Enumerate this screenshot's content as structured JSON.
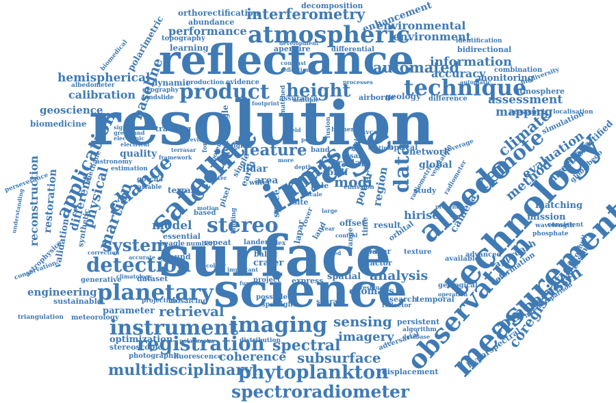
{
  "colors": {
    "word": "#3f7ab4",
    "background": "#ffffff"
  },
  "words": [
    {
      "text": "resolution"
    },
    {
      "text": "surface"
    },
    {
      "text": "science"
    },
    {
      "text": "reflectance"
    },
    {
      "text": "image"
    },
    {
      "text": "technology"
    },
    {
      "text": "measurement"
    },
    {
      "text": "observation"
    },
    {
      "text": "albedo"
    },
    {
      "text": "satellite"
    },
    {
      "text": "atmospheric"
    },
    {
      "text": "planetary"
    },
    {
      "text": "instrument"
    },
    {
      "text": "imaging"
    },
    {
      "text": "spectroradiometer"
    },
    {
      "text": "phytoplankton"
    },
    {
      "text": "registration"
    },
    {
      "text": "product"
    },
    {
      "text": "technique"
    },
    {
      "text": "stereo"
    },
    {
      "text": "detection"
    },
    {
      "text": "system"
    },
    {
      "text": "cloud"
    },
    {
      "text": "change"
    },
    {
      "text": "application"
    },
    {
      "text": "mars"
    },
    {
      "text": "data"
    },
    {
      "text": "remote"
    },
    {
      "text": "comparison"
    },
    {
      "text": "coregistration"
    },
    {
      "text": "interferometry"
    },
    {
      "text": "height"
    },
    {
      "text": "feature"
    },
    {
      "text": "multidisciplinary"
    },
    {
      "text": "subsurface"
    },
    {
      "text": "coherence"
    },
    {
      "text": "spectral"
    },
    {
      "text": "imagery"
    },
    {
      "text": "sensing"
    },
    {
      "text": "retrieval"
    },
    {
      "text": "analysis"
    },
    {
      "text": "climate"
    },
    {
      "text": "method"
    },
    {
      "text": "evaluation"
    },
    {
      "text": "automated"
    },
    {
      "text": "information"
    },
    {
      "text": "accuracy"
    },
    {
      "text": "hemispherical"
    },
    {
      "text": "calibration"
    },
    {
      "text": "baseline"
    },
    {
      "text": "performance"
    },
    {
      "text": "environmental"
    },
    {
      "text": "environment"
    },
    {
      "text": "orthorectification"
    },
    {
      "text": "decomposition"
    },
    {
      "text": "enhancement"
    },
    {
      "text": "assessment"
    },
    {
      "text": "mapping"
    },
    {
      "text": "monitoring"
    },
    {
      "text": "martian"
    },
    {
      "text": "physical"
    },
    {
      "text": "reconstruction"
    },
    {
      "text": "restoration"
    },
    {
      "text": "geoscience"
    },
    {
      "text": "biomedicine"
    },
    {
      "text": "model"
    },
    {
      "text": "hirise"
    },
    {
      "text": "global"
    },
    {
      "text": "network"
    },
    {
      "text": "camera"
    },
    {
      "text": "modi"
    },
    {
      "text": "lidar"
    },
    {
      "text": "radar"
    },
    {
      "text": "mission"
    },
    {
      "text": "matching"
    },
    {
      "text": "engineering"
    },
    {
      "text": "parameter"
    },
    {
      "text": "dataset"
    },
    {
      "text": "exomars"
    },
    {
      "text": "result"
    },
    {
      "text": "quality"
    },
    {
      "text": "different"
    },
    {
      "text": "validation"
    },
    {
      "text": "polarimetric"
    },
    {
      "text": "abundance"
    },
    {
      "text": "topography"
    },
    {
      "text": "learning"
    },
    {
      "text": "aperture"
    },
    {
      "text": "differential"
    },
    {
      "text": "bidirectional"
    },
    {
      "text": "identification"
    },
    {
      "text": "atmosphere"
    },
    {
      "text": "region"
    },
    {
      "text": "power"
    },
    {
      "text": "deformation"
    },
    {
      "text": "hyperspectral"
    },
    {
      "text": "intercomparison"
    },
    {
      "text": "chlorophyll"
    },
    {
      "text": "directional"
    },
    {
      "text": "orthorectified"
    },
    {
      "text": "globalbedo"
    },
    {
      "text": "simulation"
    },
    {
      "text": "localisation"
    },
    {
      "text": "biodiversity"
    },
    {
      "text": "combination"
    },
    {
      "text": "optimization"
    },
    {
      "text": "stereoscopic"
    },
    {
      "text": "photographic"
    },
    {
      "text": "fluorescence"
    },
    {
      "text": "meteorology"
    },
    {
      "text": "sustainable"
    },
    {
      "text": "displacement"
    },
    {
      "text": "adversarial"
    },
    {
      "text": "temporal"
    },
    {
      "text": "generative"
    },
    {
      "text": "spatial"
    },
    {
      "text": "terrain"
    },
    {
      "text": "area"
    },
    {
      "text": "ground"
    },
    {
      "text": "essential"
    },
    {
      "text": "beagle"
    },
    {
      "text": "repeat"
    },
    {
      "text": "lander"
    },
    {
      "text": "crater"
    },
    {
      "text": "baltic"
    },
    {
      "text": "paper"
    },
    {
      "text": "express"
    },
    {
      "text": "sharad"
    },
    {
      "text": "possible"
    },
    {
      "text": "spotlight"
    },
    {
      "text": "mosaicing"
    },
    {
      "text": "projection"
    },
    {
      "text": "climatology"
    },
    {
      "text": "tracking"
    },
    {
      "text": "landslide"
    },
    {
      "text": "geography"
    },
    {
      "text": "dynamic"
    },
    {
      "text": "production"
    },
    {
      "text": "evidence"
    },
    {
      "text": "assurance"
    },
    {
      "text": "geology"
    },
    {
      "text": "difference"
    },
    {
      "text": "airborne"
    },
    {
      "text": "processes"
    },
    {
      "text": "development"
    },
    {
      "text": "albedometer"
    },
    {
      "text": "biomedical"
    },
    {
      "text": "astrophysics"
    },
    {
      "text": "conservation"
    },
    {
      "text": "triangulation"
    },
    {
      "text": "perseverance"
    },
    {
      "text": "understanding"
    },
    {
      "text": "synthetic"
    },
    {
      "text": "methane"
    },
    {
      "text": "astronomy"
    },
    {
      "text": "estimation"
    },
    {
      "text": "gotcha"
    },
    {
      "text": "variable"
    },
    {
      "text": "correction"
    },
    {
      "text": "accurate"
    },
    {
      "text": "number"
    },
    {
      "text": "based"
    },
    {
      "text": "pixel"
    },
    {
      "text": "space"
    },
    {
      "text": "site"
    },
    {
      "text": "offset"
    },
    {
      "text": "orbital"
    },
    {
      "text": "texture"
    },
    {
      "text": "available"
    },
    {
      "text": "advanced"
    },
    {
      "text": "approach"
    },
    {
      "text": "processing"
    },
    {
      "text": "consistent"
    },
    {
      "text": "wavelength"
    },
    {
      "text": "phosphate"
    },
    {
      "text": "eresearch"
    },
    {
      "text": "coverage"
    },
    {
      "text": "study"
    },
    {
      "text": "optical"
    },
    {
      "text": "sentinel"
    },
    {
      "text": "brdf"
    },
    {
      "text": "insar"
    },
    {
      "text": "tower"
    },
    {
      "text": "band"
    },
    {
      "text": "earth"
    },
    {
      "text": "water"
    },
    {
      "text": "single"
    },
    {
      "text": "quadrangle"
    },
    {
      "text": "digital"
    },
    {
      "text": "electronic"
    },
    {
      "text": "significant"
    },
    {
      "text": "greenland"
    },
    {
      "text": "electrical"
    },
    {
      "text": "research"
    },
    {
      "text": "reflector"
    },
    {
      "text": "geological"
    },
    {
      "text": "operation"
    },
    {
      "text": "persistent"
    },
    {
      "text": "algorithm"
    },
    {
      "text": "database"
    },
    {
      "text": "polarimetry"
    },
    {
      "text": "distribution"
    },
    {
      "text": "project"
    },
    {
      "text": "index"
    },
    {
      "text": "factor"
    },
    {
      "text": "time"
    },
    {
      "text": "land"
    },
    {
      "text": "range"
    },
    {
      "text": "navcam"
    },
    {
      "text": "fusion"
    },
    {
      "text": "higher"
    },
    {
      "text": "footprint"
    },
    {
      "text": "multiple"
    },
    {
      "text": "contrast"
    },
    {
      "text": "reflection"
    },
    {
      "text": "automatic"
    },
    {
      "text": "emission"
    },
    {
      "text": "lapar"
    },
    {
      "text": "pole"
    },
    {
      "text": "molecule"
    },
    {
      "text": "vegetation"
    },
    {
      "text": "radiometer"
    },
    {
      "text": "radiometric"
    },
    {
      "text": "present"
    },
    {
      "text": "formation"
    },
    {
      "text": "potential"
    },
    {
      "text": "previous"
    },
    {
      "text": "framework"
    },
    {
      "text": "scatter"
    },
    {
      "text": "residual"
    },
    {
      "text": "landing"
    },
    {
      "text": "control"
    },
    {
      "text": "novel"
    },
    {
      "text": "cited"
    },
    {
      "text": "rover"
    },
    {
      "text": "ecology"
    },
    {
      "text": "function"
    },
    {
      "text": "motion"
    },
    {
      "text": "terrasar"
    },
    {
      "text": "matched"
    },
    {
      "text": "important"
    },
    {
      "text": "scale"
    },
    {
      "text": "large"
    },
    {
      "text": "year"
    },
    {
      "text": "more"
    },
    {
      "text": "depth"
    },
    {
      "text": "point"
    },
    {
      "text": "field"
    },
    {
      "text": "local"
    }
  ]
}
